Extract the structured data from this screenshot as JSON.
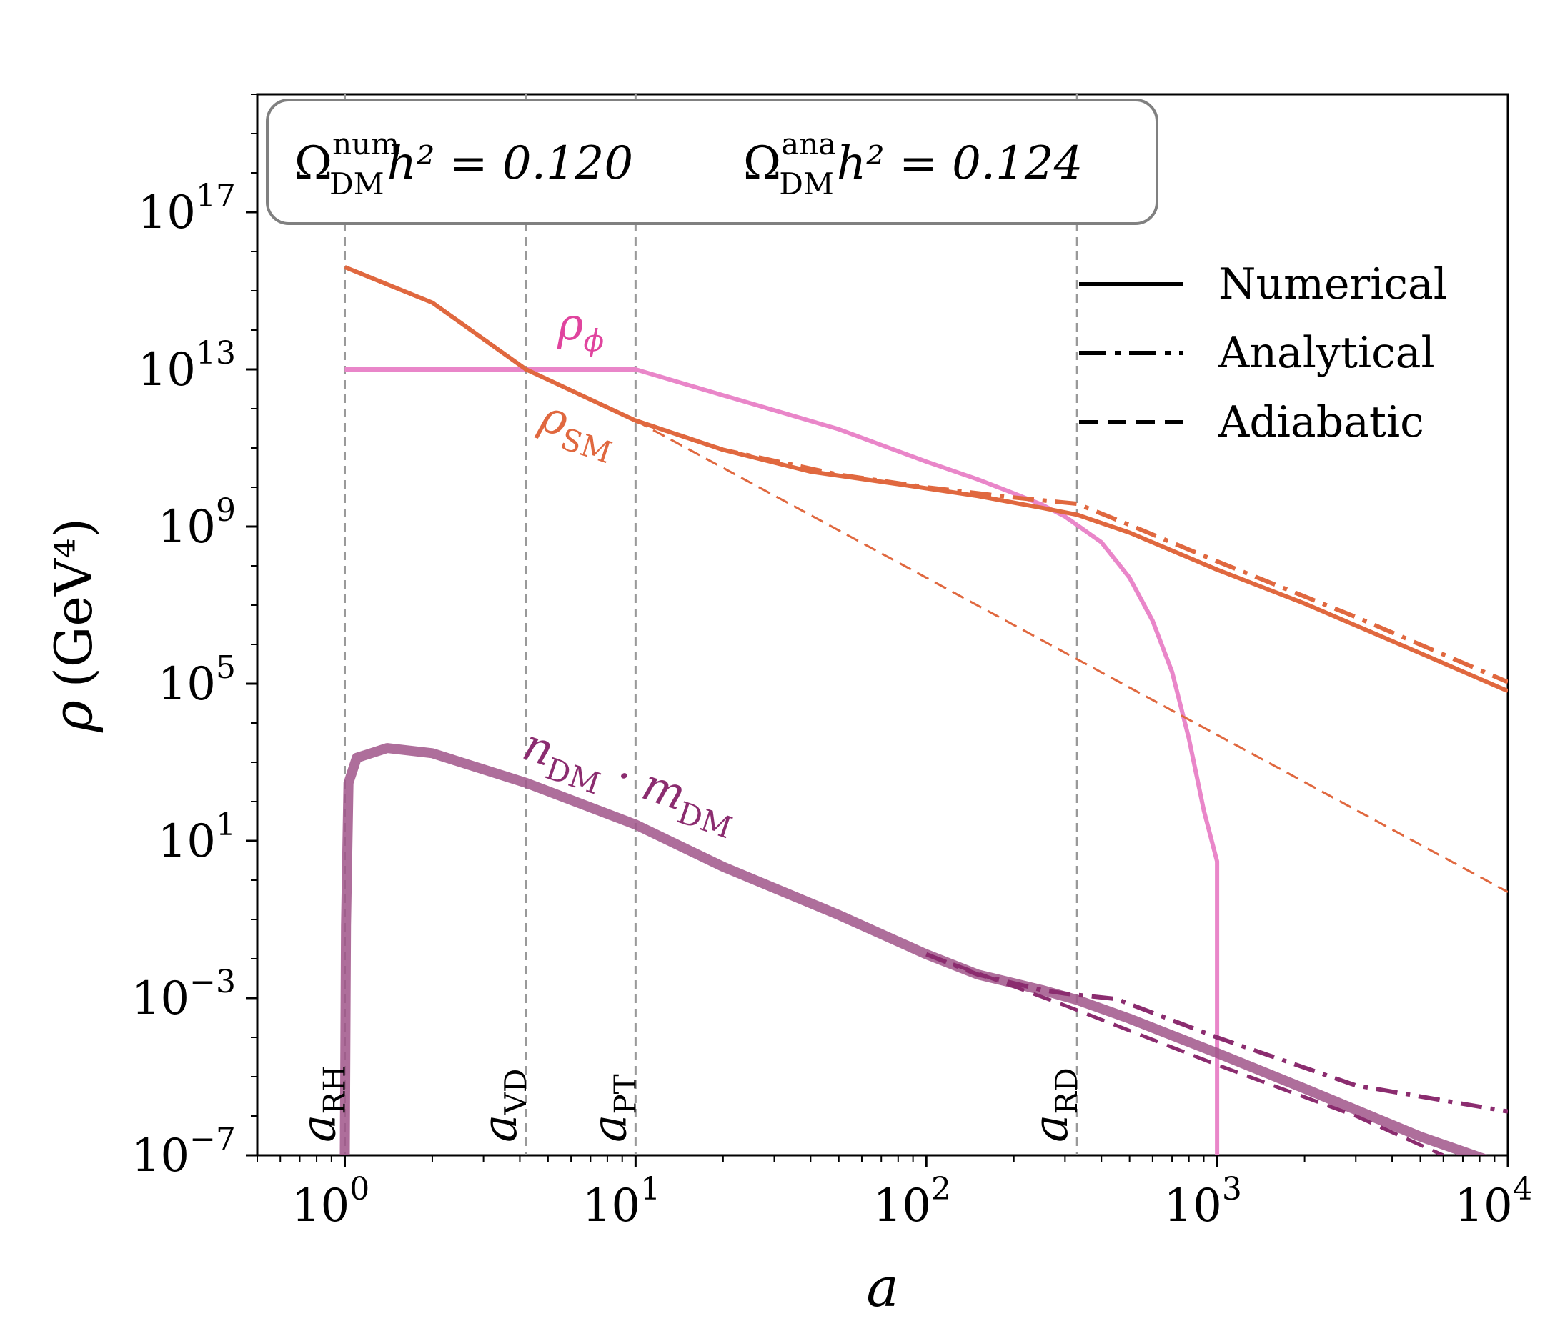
{
  "chart_data": {
    "type": "line",
    "xscale": "log",
    "yscale": "log",
    "xlabel": "a",
    "ylabel": "ρ",
    "ylabel_unit": "(GeV⁴)",
    "xlim": [
      0.5,
      10000
    ],
    "ylim": [
      1e-07,
      1e+20
    ],
    "x_ticks": [
      {
        "value": 1,
        "base": "10",
        "exp": "0"
      },
      {
        "value": 10,
        "base": "10",
        "exp": "1"
      },
      {
        "value": 100,
        "base": "10",
        "exp": "2"
      },
      {
        "value": 1000,
        "base": "10",
        "exp": "3"
      },
      {
        "value": 10000,
        "base": "10",
        "exp": "4"
      }
    ],
    "y_ticks": [
      {
        "value": 1e-07,
        "base": "10",
        "exp": "−7"
      },
      {
        "value": 0.001,
        "base": "10",
        "exp": "−3"
      },
      {
        "value": 10.0,
        "base": "10",
        "exp": "1"
      },
      {
        "value": 100000.0,
        "base": "10",
        "exp": "5"
      },
      {
        "value": 1000000000.0,
        "base": "10",
        "exp": "9"
      },
      {
        "value": 10000000000000.0,
        "base": "10",
        "exp": "13"
      },
      {
        "value": 1e+17,
        "base": "10",
        "exp": "17"
      }
    ],
    "annotation_box": {
      "left": {
        "symbol": "Ω",
        "sup": "num",
        "sub": "DM",
        "rest": "h² = 0.120"
      },
      "right": {
        "symbol": "Ω",
        "sup": "ana",
        "sub": "DM",
        "rest": "h² = 0.124"
      }
    },
    "vertical_markers": [
      {
        "x": 1.0,
        "symbol": "a",
        "sub": "RH"
      },
      {
        "x": 4.2,
        "symbol": "a",
        "sub": "VD"
      },
      {
        "x": 10.0,
        "symbol": "a",
        "sub": "PT"
      },
      {
        "x": 330,
        "symbol": "a",
        "sub": "RD"
      }
    ],
    "legend": {
      "placement": "top-right",
      "entries": [
        {
          "label": "Numerical",
          "style": "solid"
        },
        {
          "label": "Analytical",
          "style": "dashdot"
        },
        {
          "label": "Adiabatic",
          "style": "dashed"
        }
      ]
    },
    "curve_labels": [
      {
        "symbol": "ρ",
        "sub": "ϕ",
        "color": "#e0449e"
      },
      {
        "symbol": "ρ",
        "sub": "SM",
        "color": "#e0683f"
      },
      {
        "symbol": "n",
        "sub": "DM",
        "mid": " · m",
        "sub2": "DM",
        "color": "#8b2c6f"
      }
    ],
    "series": [
      {
        "name": "rho_phi numerical",
        "style": "solid",
        "color": "#e986c9",
        "points": [
          [
            1,
            10000000000000.0
          ],
          [
            10,
            10000000000000.0
          ],
          [
            20,
            2200000000000.0
          ],
          [
            50,
            300000000000.0
          ],
          [
            100,
            45000000000.0
          ],
          [
            150,
            16000000000.0
          ],
          [
            200,
            7000000000.0
          ],
          [
            250,
            3600000000.0
          ],
          [
            300,
            1800000000.0
          ],
          [
            400,
            400000000.0
          ],
          [
            500,
            50000000.0
          ],
          [
            600,
            4000000.0
          ],
          [
            700,
            200000.0
          ],
          [
            800,
            4000.0
          ],
          [
            900,
            60
          ],
          [
            1000,
            3
          ],
          [
            1000,
            1e-07
          ]
        ]
      },
      {
        "name": "rho_SM numerical",
        "style": "solid",
        "color": "#e0683f",
        "points": [
          [
            1,
            4000000000000000.0
          ],
          [
            2,
            500000000000000.0
          ],
          [
            4.2,
            10000000000000.0
          ],
          [
            10,
            500000000000.0
          ],
          [
            20,
            90000000000.0
          ],
          [
            40,
            25000000000.0
          ],
          [
            80,
            12000000000.0
          ],
          [
            150,
            6000000000.0
          ],
          [
            250,
            3000000000.0
          ],
          [
            330,
            2000000000.0
          ],
          [
            500,
            700000000.0
          ],
          [
            1000,
            80000000.0
          ],
          [
            2000,
            11000000.0
          ],
          [
            5000,
            600000.0
          ],
          [
            10000,
            65000.0
          ]
        ]
      },
      {
        "name": "rho_SM analytical",
        "style": "dashdot",
        "color": "#e0683f",
        "points": [
          [
            10,
            500000000000.0
          ],
          [
            20,
            90000000000.0
          ],
          [
            50,
            21000000000.0
          ],
          [
            100,
            10000000000.0
          ],
          [
            200,
            5500000000.0
          ],
          [
            330,
            3800000000.0
          ],
          [
            500,
            1100000000.0
          ],
          [
            1000,
            130000000.0
          ],
          [
            3000,
            5000000.0
          ],
          [
            10000,
            110000.0
          ]
        ]
      },
      {
        "name": "rho_SM adiabatic",
        "style": "dashed-thin",
        "color": "#e0683f",
        "points": [
          [
            10,
            500000000000.0
          ],
          [
            10000,
            0.5
          ]
        ]
      },
      {
        "name": "DM numerical",
        "style": "solid-thick",
        "color": "#a0558a",
        "points": [
          [
            1,
            1e-07
          ],
          [
            1.01,
            0.07
          ],
          [
            1.03,
            300.0
          ],
          [
            1.1,
            1300.0
          ],
          [
            1.4,
            2300.0
          ],
          [
            2,
            1700.0
          ],
          [
            4.2,
            300.0
          ],
          [
            10,
            26.0
          ],
          [
            20,
            2.2
          ],
          [
            50,
            0.13
          ],
          [
            100,
            0.013
          ],
          [
            150,
            0.004
          ],
          [
            250,
            0.0016
          ],
          [
            330,
            0.0009
          ],
          [
            500,
            0.0003
          ],
          [
            1000,
            4e-05
          ],
          [
            2000,
            5e-06
          ],
          [
            5000,
            3e-07
          ],
          [
            10000,
            5e-08
          ]
        ]
      },
      {
        "name": "DM analytical",
        "style": "dashdot",
        "color": "#8b2c6f",
        "points": [
          [
            100,
            0.013
          ],
          [
            150,
            0.004
          ],
          [
            250,
            0.0016
          ],
          [
            300,
            0.0013
          ],
          [
            450,
            0.00095
          ],
          [
            1000,
            0.0001
          ],
          [
            3000,
            6e-06
          ],
          [
            10000,
            1.3e-06
          ]
        ]
      },
      {
        "name": "DM adiabatic",
        "style": "dashed",
        "color": "#8b2c6f",
        "points": [
          [
            100,
            0.013
          ],
          [
            300,
            0.00065
          ],
          [
            1000,
            2e-05
          ],
          [
            3000,
            1e-06
          ],
          [
            6000,
            1e-07
          ]
        ]
      }
    ]
  }
}
